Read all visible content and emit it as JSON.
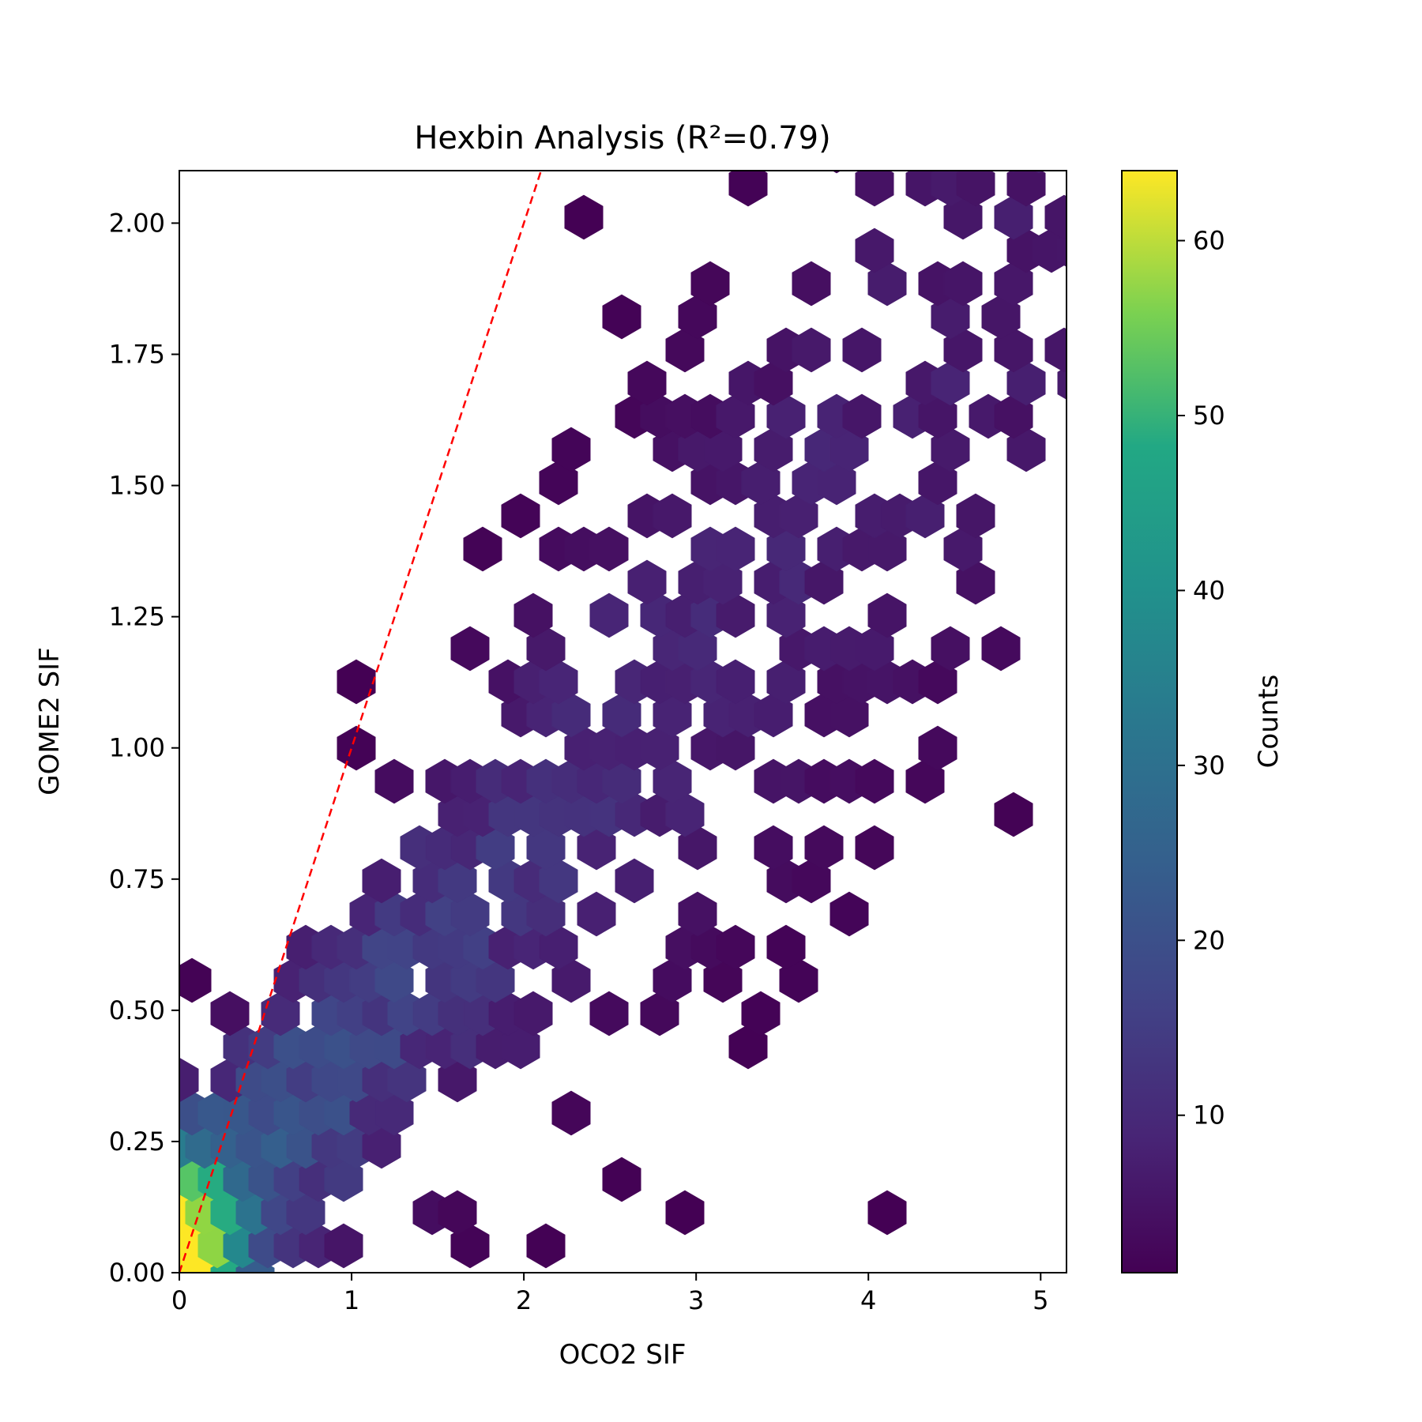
{
  "chart_data": {
    "type": "heatmap",
    "subtype": "hexbin",
    "title": "Hexbin Analysis (R²=0.79)",
    "xlabel": "OCO2 SIF",
    "ylabel": "GOME2 SIF",
    "xlim": [
      0,
      5.15
    ],
    "ylim": [
      0,
      2.1
    ],
    "xticks": [
      0,
      1,
      2,
      3,
      4,
      5
    ],
    "xtick_labels": [
      "0",
      "1",
      "2",
      "3",
      "4",
      "5"
    ],
    "yticks": [
      0,
      0.25,
      0.5,
      0.75,
      1.0,
      1.25,
      1.5,
      1.75,
      2.0
    ],
    "ytick_labels": [
      "0.00",
      "0.25",
      "0.50",
      "0.75",
      "1.00",
      "1.25",
      "1.50",
      "1.75",
      "2.00"
    ],
    "grid": false,
    "colormap": "viridis",
    "colorbar": {
      "label": "Counts",
      "range": [
        1,
        64
      ],
      "ticks": [
        10,
        20,
        30,
        40,
        50,
        60
      ],
      "tick_labels": [
        "10",
        "20",
        "30",
        "40",
        "50",
        "60"
      ]
    },
    "reference_line": {
      "style": "dashed",
      "color": "#ff0000",
      "points": [
        [
          0.0,
          0.0
        ],
        [
          2.1,
          2.1
        ]
      ]
    },
    "density_model": {
      "description_points": "hex cell counts approximate a density concentrated along GOME2 ≈ 0.4 × OCO2 with a peak near the origin",
      "max_count": 64
    }
  }
}
